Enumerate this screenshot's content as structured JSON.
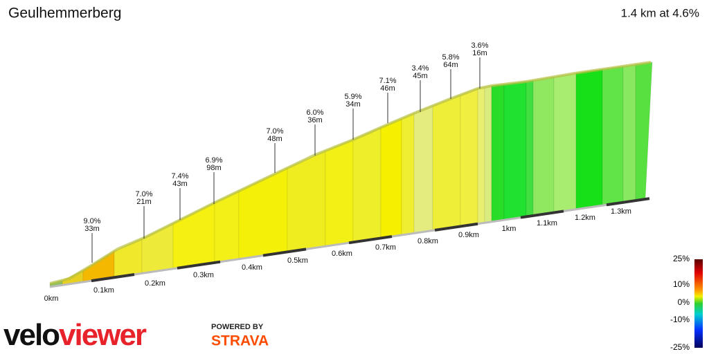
{
  "header": {
    "title": "Geulhemmerberg",
    "summary": "1.4 km at 4.6%"
  },
  "annotations": [
    {
      "grade": "9.0%",
      "length": "33m"
    },
    {
      "grade": "7.0%",
      "length": "21m"
    },
    {
      "grade": "7.4%",
      "length": "43m"
    },
    {
      "grade": "6.9%",
      "length": "98m"
    },
    {
      "grade": "7.0%",
      "length": "48m"
    },
    {
      "grade": "6.0%",
      "length": "36m"
    },
    {
      "grade": "5.9%",
      "length": "34m"
    },
    {
      "grade": "7.1%",
      "length": "46m"
    },
    {
      "grade": "3.4%",
      "length": "45m"
    },
    {
      "grade": "5.8%",
      "length": "64m"
    },
    {
      "grade": "3.6%",
      "length": "16m"
    }
  ],
  "distance_labels": [
    "0km",
    "0.1km",
    "0.2km",
    "0.3km",
    "0.4km",
    "0.5km",
    "0.6km",
    "0.7km",
    "0.8km",
    "0.9km",
    "1km",
    "1.1km",
    "1.2km",
    "1.3km"
  ],
  "legend": {
    "labels": [
      "25%",
      "10%",
      "0%",
      "-10%",
      "-25%"
    ]
  },
  "branding": {
    "logo_start": "velo",
    "logo_end": "viewer",
    "powered_by": "POWERED BY",
    "partner": "STRAVA"
  }
}
